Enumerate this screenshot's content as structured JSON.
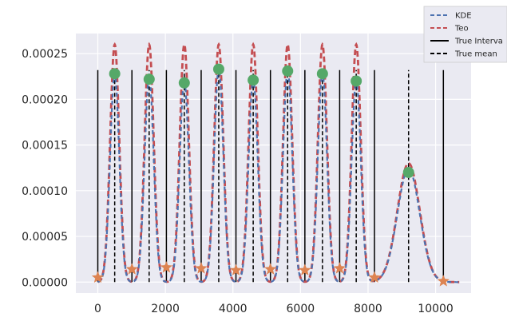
{
  "chart_data": {
    "type": "line",
    "title": "",
    "xlabel": "",
    "ylabel": "",
    "xlim": [
      -650,
      11050
    ],
    "ylim": [
      -1.2e-05,
      0.000272
    ],
    "grid": true,
    "legend_position": "top-right, outside plot",
    "x_ticks": [
      0,
      2000,
      4000,
      6000,
      8000,
      10000
    ],
    "x_tick_labels": [
      "0",
      "2000",
      "4000",
      "6000",
      "8000",
      "10000"
    ],
    "y_ticks": [
      0.0,
      5e-05,
      0.0001,
      0.00015,
      0.0002,
      0.00025
    ],
    "y_tick_labels": [
      "0.00000",
      "0.00005",
      "0.00010",
      "0.00015",
      "0.00020",
      "0.00025"
    ],
    "legend": [
      {
        "label": "KDE",
        "style": "dashed",
        "color": "#4c72b0"
      },
      {
        "label": "Teo",
        "style": "dashed",
        "color": "#c44e52"
      },
      {
        "label": "True Interva",
        "style": "solid",
        "color": "#000000"
      },
      {
        "label": "True mean",
        "style": "dashed",
        "color": "#000000"
      }
    ],
    "peak_centers": [
      500,
      1520,
      2560,
      3580,
      4600,
      5620,
      6650,
      7650,
      9200
    ],
    "peak_sigmas": [
      135,
      135,
      135,
      135,
      135,
      135,
      135,
      135,
      330
    ],
    "series": [
      {
        "name": "KDE",
        "color": "#4c72b0",
        "peak_heights": [
          0.000228,
          0.000224,
          0.00022,
          0.000234,
          0.000222,
          0.000232,
          0.000229,
          0.000221,
          0.000124
        ]
      },
      {
        "name": "Teo",
        "color": "#c44e52",
        "peak_heights": [
          0.00026,
          0.00026,
          0.00026,
          0.00026,
          0.00026,
          0.00026,
          0.00026,
          0.00026,
          0.00013
        ]
      }
    ],
    "true_interval_lines": {
      "x": [
        0,
        1010,
        2030,
        3060,
        4090,
        5110,
        6130,
        7160,
        8190,
        10230
      ],
      "y_top": 0.000232
    },
    "true_mean_lines": {
      "x": [
        500,
        1520,
        2560,
        3580,
        4600,
        5620,
        6650,
        7650,
        9200
      ],
      "y_top": 0.000232
    },
    "mode_points": {
      "color": "#55a868",
      "x": [
        500,
        1520,
        2560,
        3580,
        4600,
        5620,
        6650,
        7650,
        9200
      ],
      "y": [
        0.000228,
        0.000222,
        0.000218,
        0.000233,
        0.000221,
        0.000231,
        0.000228,
        0.00022,
        0.00012
      ]
    },
    "boundary_points": {
      "color": "#dd8452",
      "x": [
        0,
        1010,
        2030,
        3060,
        4090,
        5110,
        6130,
        7160,
        8190,
        10230
      ],
      "y": [
        5e-06,
        1.4e-05,
        1.6e-05,
        1.5e-05,
        1.3e-05,
        1.4e-05,
        1.3e-05,
        1.5e-05,
        5e-06,
        1e-06
      ]
    }
  }
}
